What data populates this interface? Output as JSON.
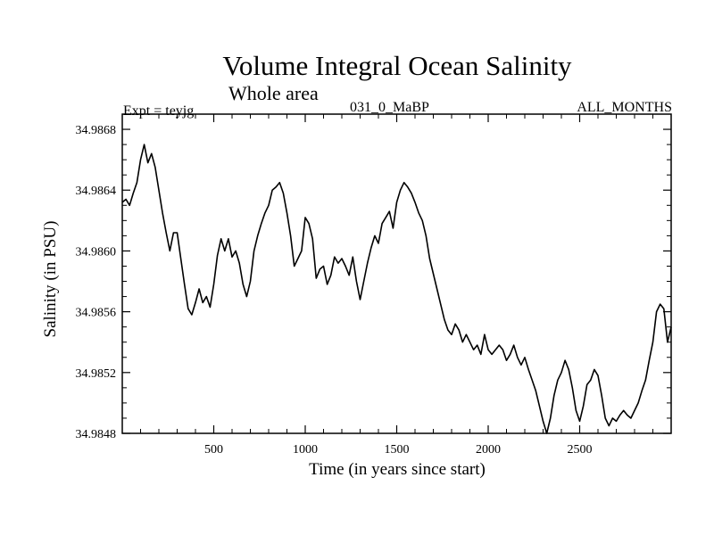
{
  "chart_data": {
    "type": "line",
    "title": "Volume Integral Ocean Salinity",
    "subtitle": "Whole area",
    "left_annotation": "Expt = teyjg",
    "center_annotation": "031_0_MaBP",
    "right_annotation": "ALL_MONTHS",
    "xlabel": "Time (in years since start)",
    "ylabel": "Salinity (in PSU)",
    "xlim": [
      0,
      3000
    ],
    "ylim": [
      34.9848,
      34.9869
    ],
    "x_ticks": [
      500,
      1000,
      1500,
      2000,
      2500
    ],
    "x_tick_labels": [
      "500",
      "1000",
      "1500",
      "2000",
      "2500"
    ],
    "y_ticks": [
      34.9848,
      34.9852,
      34.9856,
      34.986,
      34.9864,
      34.9868
    ],
    "y_tick_labels": [
      "34.9848",
      "34.9852",
      "34.9856",
      "34.9860",
      "34.9864",
      "34.9868"
    ],
    "grid": false,
    "line_color": "#000000",
    "series": [
      {
        "name": "Salinity",
        "x": [
          0,
          20,
          40,
          60,
          80,
          100,
          120,
          140,
          160,
          180,
          200,
          220,
          240,
          260,
          280,
          300,
          320,
          340,
          360,
          380,
          400,
          420,
          440,
          460,
          480,
          500,
          520,
          540,
          560,
          580,
          600,
          620,
          640,
          660,
          680,
          700,
          720,
          740,
          760,
          780,
          800,
          820,
          840,
          860,
          880,
          900,
          920,
          940,
          960,
          980,
          1000,
          1020,
          1040,
          1060,
          1080,
          1100,
          1120,
          1140,
          1160,
          1180,
          1200,
          1220,
          1240,
          1260,
          1280,
          1300,
          1320,
          1340,
          1360,
          1380,
          1400,
          1420,
          1440,
          1460,
          1480,
          1500,
          1520,
          1540,
          1560,
          1580,
          1600,
          1620,
          1640,
          1660,
          1680,
          1700,
          1720,
          1740,
          1760,
          1780,
          1800,
          1820,
          1840,
          1860,
          1880,
          1900,
          1920,
          1940,
          1960,
          1980,
          2000,
          2020,
          2040,
          2060,
          2080,
          2100,
          2120,
          2140,
          2160,
          2180,
          2200,
          2220,
          2240,
          2260,
          2280,
          2300,
          2320,
          2340,
          2360,
          2380,
          2400,
          2420,
          2440,
          2460,
          2480,
          2500,
          2520,
          2540,
          2560,
          2580,
          2600,
          2620,
          2640,
          2660,
          2680,
          2700,
          2720,
          2740,
          2760,
          2780,
          2800,
          2820,
          2840,
          2860,
          2880,
          2900,
          2920,
          2940,
          2960,
          2980,
          3000
        ],
        "values": [
          34.98632,
          34.98634,
          34.9863,
          34.98638,
          34.98645,
          34.9866,
          34.9867,
          34.98658,
          34.98664,
          34.98655,
          34.9864,
          34.98625,
          34.98612,
          34.986,
          34.98612,
          34.98612,
          34.98595,
          34.98578,
          34.98562,
          34.98558,
          34.98566,
          34.98575,
          34.98566,
          34.9857,
          34.98563,
          34.98578,
          34.98597,
          34.98608,
          34.986,
          34.98608,
          34.98596,
          34.986,
          34.98592,
          34.98578,
          34.9857,
          34.9858,
          34.986,
          34.9861,
          34.98618,
          34.98625,
          34.9863,
          34.9864,
          34.98642,
          34.98645,
          34.98638,
          34.98625,
          34.9861,
          34.9859,
          34.98595,
          34.986,
          34.98622,
          34.98618,
          34.98608,
          34.98582,
          34.98588,
          34.9859,
          34.98578,
          34.98584,
          34.98596,
          34.98592,
          34.98595,
          34.9859,
          34.98584,
          34.98596,
          34.9858,
          34.98568,
          34.9858,
          34.98592,
          34.98602,
          34.9861,
          34.98605,
          34.98618,
          34.98622,
          34.98626,
          34.98615,
          34.98632,
          34.9864,
          34.98645,
          34.98642,
          34.98638,
          34.98632,
          34.98625,
          34.9862,
          34.9861,
          34.98595,
          34.98585,
          34.98575,
          34.98565,
          34.98555,
          34.98548,
          34.98545,
          34.98552,
          34.98548,
          34.9854,
          34.98545,
          34.9854,
          34.98535,
          34.98538,
          34.98532,
          34.98545,
          34.98535,
          34.98532,
          34.98535,
          34.98538,
          34.98535,
          34.98528,
          34.98532,
          34.98538,
          34.9853,
          34.98525,
          34.9853,
          34.98522,
          34.98515,
          34.98508,
          34.98498,
          34.98488,
          34.9848,
          34.9849,
          34.98505,
          34.98515,
          34.9852,
          34.98528,
          34.98522,
          34.9851,
          34.98495,
          34.98488,
          34.98498,
          34.98512,
          34.98515,
          34.98522,
          34.98518,
          34.98505,
          34.9849,
          34.98485,
          34.9849,
          34.98488,
          34.98492,
          34.98495,
          34.98492,
          34.9849,
          34.98495,
          34.985,
          34.98508,
          34.98515,
          34.98528,
          34.9854,
          34.9856,
          34.98565,
          34.98562,
          34.9854,
          34.9855
        ]
      }
    ]
  }
}
